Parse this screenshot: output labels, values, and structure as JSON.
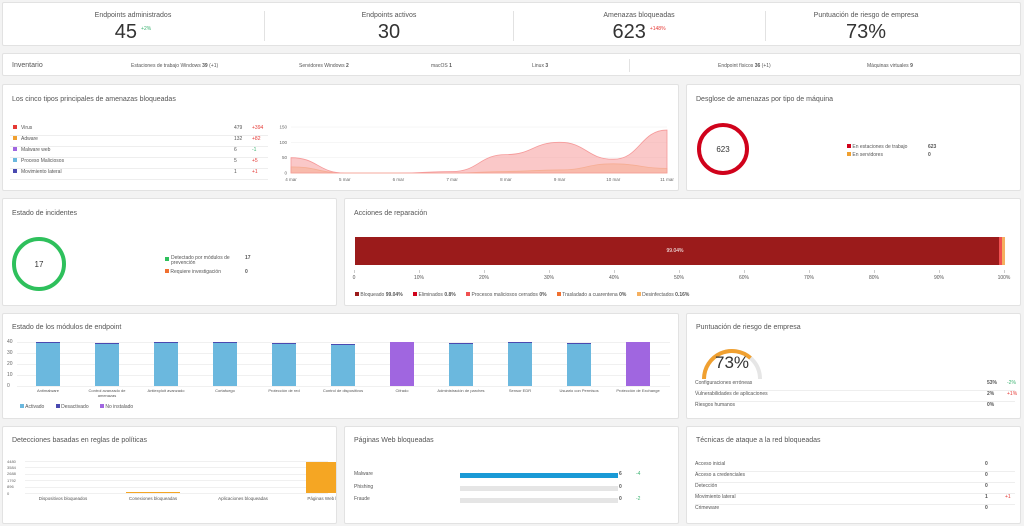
{
  "kpis": [
    {
      "label": "Endpoints administrados",
      "value": "45",
      "delta": "+2%",
      "delta_color": "green"
    },
    {
      "label": "Endpoints activos",
      "value": "30",
      "delta": "",
      "delta_color": ""
    },
    {
      "label": "Amenazas bloqueadas",
      "value": "623",
      "delta": "+148%",
      "delta_color": "red"
    },
    {
      "label": "Puntuación de riesgo de empresa",
      "value": "73%",
      "delta": "",
      "delta_color": ""
    }
  ],
  "inventory": {
    "title": "Inventario",
    "items": [
      {
        "label": "Estaciones de trabajo Windows",
        "value": "39",
        "extra": "(+1)"
      },
      {
        "label": "Servidores Windows",
        "value": "2",
        "extra": ""
      },
      {
        "label": "macOS",
        "value": "1",
        "extra": ""
      },
      {
        "label": "Linux",
        "value": "3",
        "extra": ""
      },
      {
        "label": "Endpoint físicos",
        "value": "36",
        "extra": "(+1)"
      },
      {
        "label": "Máquinas virtuales",
        "value": "9",
        "extra": ""
      }
    ]
  },
  "top_threats": {
    "title": "Los cinco tipos principales de amenazas bloqueadas",
    "rows": [
      {
        "label": "Virus",
        "value": "479",
        "delta": "+394",
        "color": "#e53935"
      },
      {
        "label": "Adware",
        "value": "132",
        "delta": "+82",
        "color": "#f0a030"
      },
      {
        "label": "Malware web",
        "value": "6",
        "delta": "-1",
        "color": "#a066e0"
      },
      {
        "label": "Proceso Maliciosos",
        "value": "5",
        "delta": "+5",
        "color": "#6bb8de"
      },
      {
        "label": "Movimiento lateral",
        "value": "1",
        "delta": "+1",
        "color": "#4a4ab0"
      }
    ]
  },
  "chart_data": [
    {
      "type": "area",
      "x": [
        "4 mar",
        "5 mar",
        "6 mar",
        "7 mar",
        "8 mar",
        "9 mar",
        "10 mar",
        "11 mar"
      ],
      "yticks": [
        "0",
        "50",
        "100",
        "150"
      ],
      "ylim": [
        0,
        150
      ],
      "series": [
        {
          "name": "Virus",
          "color": "#f59a9a",
          "values": [
            50,
            0,
            0,
            5,
            60,
            100,
            45,
            140
          ]
        },
        {
          "name": "Adware",
          "color": "#f5c48a",
          "values": [
            20,
            0,
            0,
            0,
            5,
            10,
            30,
            15
          ]
        }
      ]
    },
    {
      "type": "bar",
      "title": "Estado de los módulos de endpoint",
      "yticks": [
        "0",
        "10",
        "20",
        "30",
        "40"
      ],
      "ylim": [
        0,
        40
      ],
      "categories": [
        "Antimalware",
        "Control avanzado de amenazas",
        "Antiexploit avanzado",
        "Cortafuego",
        "Protección de red",
        "Control de dispositivos",
        "Cifrado",
        "Administración de parches",
        "Sensor EDR",
        "Usuario con Permisos",
        "Protección de Exchange"
      ],
      "series": [
        {
          "name": "Activado",
          "color": "#6bb8de",
          "values": [
            39,
            38,
            39,
            39,
            38,
            37,
            0,
            38,
            39,
            38,
            0
          ]
        },
        {
          "name": "Desactivado",
          "color": "#4a4ab0",
          "values": [
            1,
            1,
            1,
            1,
            1,
            1,
            0,
            1,
            1,
            1,
            0
          ]
        },
        {
          "name": "No instalado",
          "color": "#a066e0",
          "values": [
            0,
            0,
            0,
            0,
            0,
            0,
            40,
            0,
            0,
            0,
            40
          ]
        }
      ]
    },
    {
      "type": "bar",
      "yticks": [
        "0",
        "896",
        "1792",
        "2688",
        "3584",
        "4480"
      ],
      "ylim": [
        0,
        4480
      ],
      "categories": [
        "Dispositivos bloqueados",
        "Conexiones bloqueadas",
        "Aplicaciones bloqueadas",
        "Páginas Web bloqueadas"
      ],
      "values": [
        0,
        60,
        0,
        4300
      ]
    }
  ],
  "machine": {
    "title": "Desglose de amenazas por tipo de máquina",
    "total": "623",
    "rows": [
      {
        "label": "En estaciones de trabajo",
        "value": "623",
        "color": "#d0021b"
      },
      {
        "label": "En servidores",
        "value": "0",
        "color": "#f0a030"
      }
    ]
  },
  "incidents": {
    "title": "Estado de incidentes",
    "total": "17",
    "rows": [
      {
        "label": "Detectado por módulos de prevención",
        "value": "17",
        "color": "#2ec05c"
      },
      {
        "label": "Requiere investigación",
        "value": "0",
        "color": "#f07030"
      }
    ]
  },
  "remediation": {
    "title": "Acciones de reparación",
    "bar_label": "99.04%",
    "bar_fraction": 0.9904,
    "ticks": [
      "0",
      "10%",
      "20%",
      "30%",
      "40%",
      "50%",
      "60%",
      "70%",
      "80%",
      "90%",
      "100%"
    ],
    "legend": [
      {
        "label": "Bloqueado",
        "value": "99.04%",
        "color": "#9b1b1b"
      },
      {
        "label": "Eliminados",
        "value": "0.8%",
        "color": "#d0021b"
      },
      {
        "label": "Procesos maliciosos cerrados",
        "value": "0%",
        "color": "#f05050"
      },
      {
        "label": "Trasladado a cuarentena",
        "value": "0%",
        "color": "#f07030"
      },
      {
        "label": "Desinfectados",
        "value": "0.16%",
        "color": "#f5b060"
      }
    ]
  },
  "modules_legend": [
    {
      "label": "Activado",
      "color": "#6bb8de"
    },
    {
      "label": "Desactivado",
      "color": "#4a4ab0"
    },
    {
      "label": "No instalado",
      "color": "#a066e0"
    }
  ],
  "risk": {
    "title": "Puntuación de riesgo de empresa",
    "value": "73%",
    "fraction": 0.73,
    "rows": [
      {
        "label": "Configuraciones erróneas",
        "value": "53%",
        "delta": "-2%",
        "dcolor": "green"
      },
      {
        "label": "Vulnerabilidades de aplicaciones",
        "value": "2%",
        "delta": "+1%",
        "dcolor": "red"
      },
      {
        "label": "Riesgos humanos",
        "value": "0%",
        "delta": "",
        "dcolor": ""
      }
    ]
  },
  "policy": {
    "title": "Detecciones basadas en reglas de políticas"
  },
  "web": {
    "title": "Páginas Web bloqueadas",
    "rows": [
      {
        "label": "Malware",
        "value": "6",
        "delta": "-4",
        "fraction": 1
      },
      {
        "label": "Phishing",
        "value": "0",
        "delta": "",
        "fraction": 0
      },
      {
        "label": "Fraude",
        "value": "0",
        "delta": "-2",
        "fraction": 0
      }
    ]
  },
  "network": {
    "title": "Técnicas de ataque a la red bloqueadas",
    "rows": [
      {
        "label": "Acceso inicial",
        "value": "0",
        "delta": ""
      },
      {
        "label": "Acceso a credenciales",
        "value": "0",
        "delta": ""
      },
      {
        "label": "Detección",
        "value": "0",
        "delta": ""
      },
      {
        "label": "Movimiento lateral",
        "value": "1",
        "delta": "+1"
      },
      {
        "label": "Crimeware",
        "value": "0",
        "delta": ""
      }
    ]
  }
}
